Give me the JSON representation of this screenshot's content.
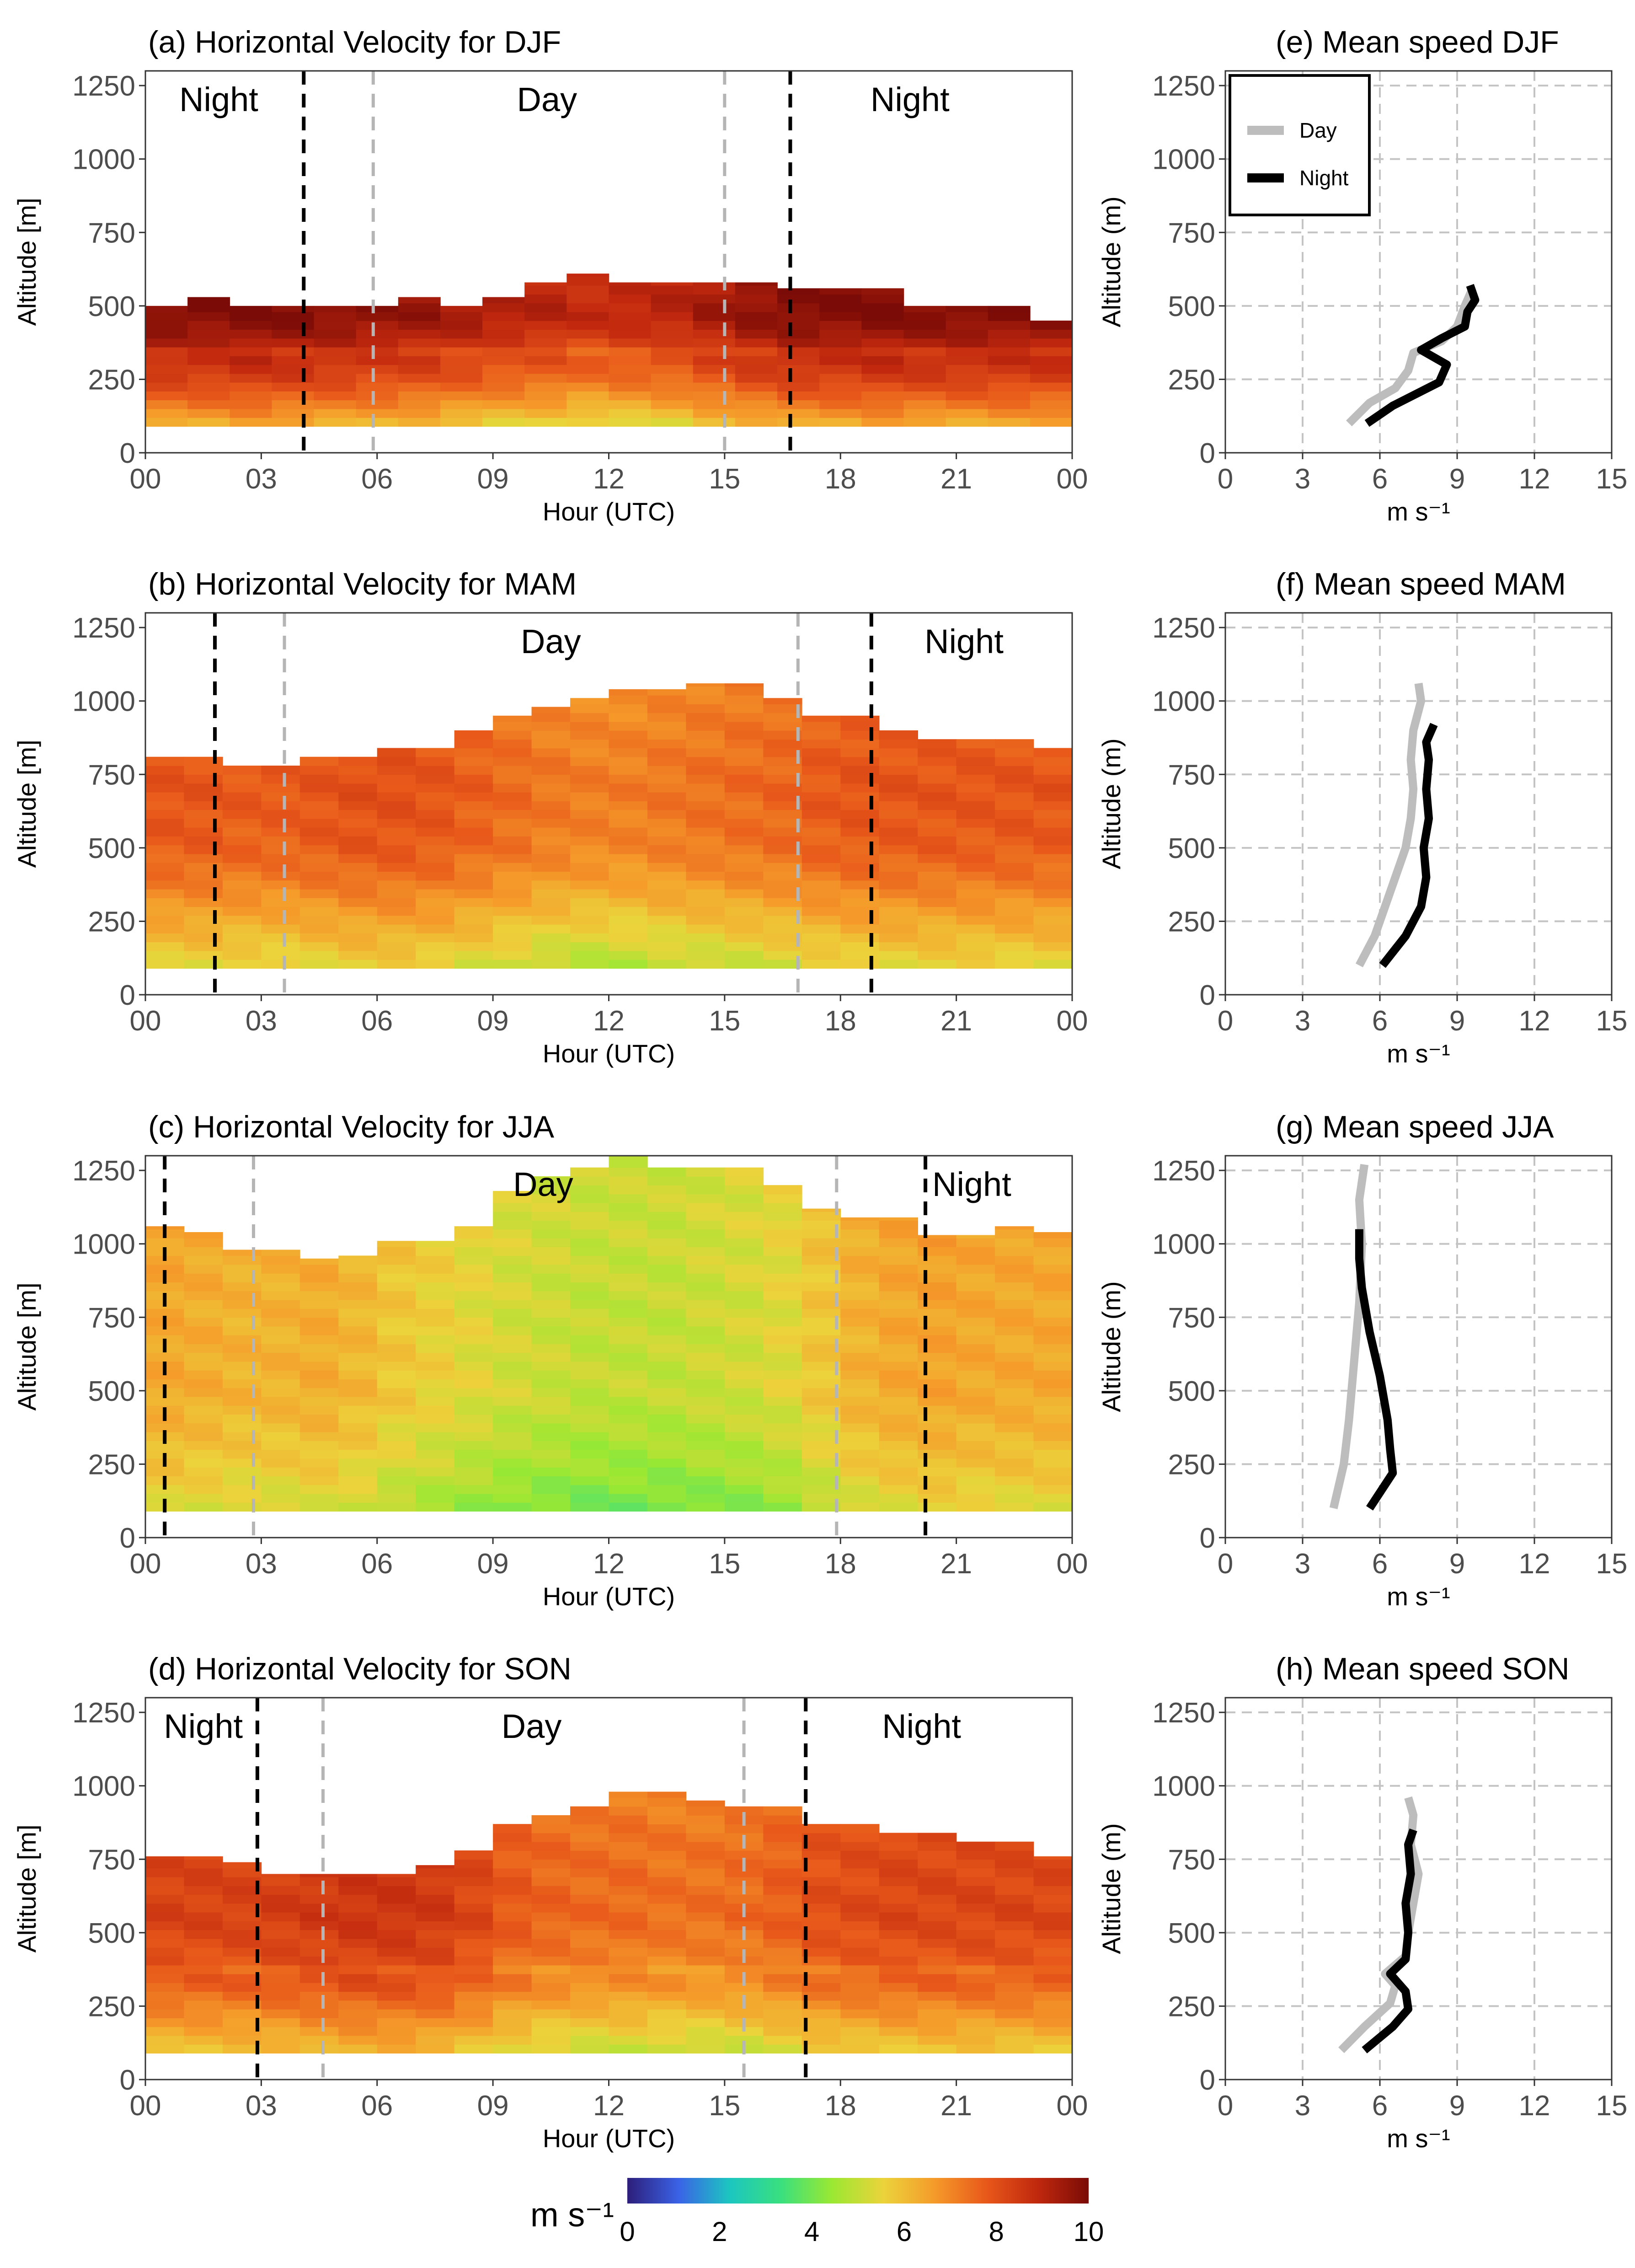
{
  "colors": {
    "day_line": "#bdbdbd",
    "night_line": "#000000",
    "grid": "#c4c4c4",
    "colormap": [
      "#2d1e7a",
      "#3a62e6",
      "#1cc6c0",
      "#39e07e",
      "#9be832",
      "#ecd33b",
      "#f59a2a",
      "#e8581a",
      "#c1280e",
      "#7a0b06"
    ]
  },
  "chart_data": [
    {
      "id": "a",
      "type": "heatmap",
      "title": "(a) Horizontal Velocity for DJF",
      "xlabel": "Hour (UTC)",
      "ylabel": "Altitude [m]",
      "xlim": [
        0,
        24
      ],
      "ylim": [
        0,
        1300
      ],
      "xticks": [
        "00",
        "03",
        "06",
        "09",
        "12",
        "15",
        "18",
        "21",
        "00"
      ],
      "yticks": [
        "0",
        "250",
        "500",
        "750",
        "1000",
        "1250"
      ],
      "bottom_altitude": 90,
      "top_altitude": [
        500,
        530,
        500,
        500,
        500,
        500,
        530,
        500,
        530,
        580,
        610,
        580,
        580,
        580,
        580,
        560,
        560,
        560,
        500,
        500,
        500,
        450
      ],
      "speed_profile": [
        [
          0,
          6.2
        ],
        [
          100,
          6.0
        ],
        [
          150,
          6.8
        ],
        [
          250,
          8.0
        ],
        [
          330,
          8.6
        ],
        [
          350,
          8.2
        ],
        [
          380,
          9.0
        ],
        [
          470,
          9.6
        ],
        [
          540,
          9.5
        ],
        [
          610,
          9.3
        ]
      ],
      "hour_adjust": [
        0.3,
        0.3,
        0.4,
        0.3,
        0.2,
        0.1,
        0.0,
        -0.2,
        -0.4,
        -0.5,
        -0.7,
        -0.6,
        -0.5,
        -0.2,
        0.1,
        0.3,
        0.3,
        0.4,
        0.3,
        0.3,
        0.3,
        0.3
      ],
      "night_lines": [
        4.1,
        16.7
      ],
      "day_lines": [
        5.9,
        15.0
      ],
      "labels": [
        {
          "text": "Night",
          "hour": 1.9
        },
        {
          "text": "Day",
          "hour": 10.4
        },
        {
          "text": "Night",
          "hour": 19.8
        }
      ]
    },
    {
      "id": "b",
      "type": "heatmap",
      "title": "(b) Horizontal Velocity for MAM",
      "xlabel": "Hour (UTC)",
      "ylabel": "Altitude [m]",
      "xlim": [
        0,
        24
      ],
      "ylim": [
        0,
        1300
      ],
      "xticks": [
        "00",
        "03",
        "06",
        "09",
        "12",
        "15",
        "18",
        "21",
        "00"
      ],
      "yticks": [
        "0",
        "250",
        "500",
        "750",
        "1000",
        "1250"
      ],
      "bottom_altitude": 90,
      "top_altitude": [
        810,
        810,
        780,
        780,
        810,
        810,
        840,
        840,
        900,
        950,
        980,
        1010,
        1040,
        1040,
        1060,
        1060,
        1010,
        950,
        950,
        900,
        870,
        870,
        870,
        840
      ],
      "speed_profile": [
        [
          0,
          5.5
        ],
        [
          100,
          5.4
        ],
        [
          200,
          6.0
        ],
        [
          300,
          6.6
        ],
        [
          400,
          7.2
        ],
        [
          500,
          7.6
        ],
        [
          700,
          7.8
        ],
        [
          900,
          7.6
        ],
        [
          1100,
          7.4
        ]
      ],
      "hour_adjust": [
        0.1,
        0.1,
        0.0,
        0.0,
        0.1,
        0.2,
        0.2,
        0.1,
        -0.1,
        -0.3,
        -0.5,
        -0.6,
        -0.6,
        -0.5,
        -0.4,
        -0.3,
        -0.2,
        0.0,
        0.1,
        0.1,
        0.1,
        0.1,
        0.1,
        0.1
      ],
      "night_lines": [
        1.8,
        18.8
      ],
      "day_lines": [
        3.6,
        16.9
      ],
      "labels": [
        {
          "text": "Day",
          "hour": 10.5
        },
        {
          "text": "Night",
          "hour": 21.2
        }
      ]
    },
    {
      "id": "c",
      "type": "heatmap",
      "title": "(c) Horizontal Velocity for JJA",
      "xlabel": "Hour (UTC)",
      "ylabel": "Altitude [m]",
      "xlim": [
        0,
        24
      ],
      "ylim": [
        0,
        1300
      ],
      "xticks": [
        "00",
        "03",
        "06",
        "09",
        "12",
        "15",
        "18",
        "21",
        "00"
      ],
      "yticks": [
        "0",
        "250",
        "500",
        "750",
        "1000",
        "1250"
      ],
      "bottom_altitude": 90,
      "top_altitude": [
        1060,
        1040,
        980,
        980,
        950,
        960,
        1010,
        1010,
        1060,
        1180,
        1230,
        1260,
        1300,
        1260,
        1260,
        1260,
        1200,
        1120,
        1090,
        1090,
        1030,
        1030,
        1060,
        1040
      ],
      "speed_profile": [
        [
          0,
          4.6
        ],
        [
          100,
          4.5
        ],
        [
          250,
          5.0
        ],
        [
          500,
          5.5
        ],
        [
          800,
          5.5
        ],
        [
          1100,
          5.6
        ],
        [
          1300,
          5.6
        ]
      ],
      "hour_adjust": [
        0.9,
        0.8,
        0.7,
        0.7,
        0.8,
        0.6,
        0.3,
        0.1,
        -0.1,
        -0.3,
        -0.4,
        -0.5,
        -0.5,
        -0.5,
        -0.4,
        -0.3,
        -0.1,
        0.3,
        0.7,
        0.9,
        1.0,
        0.9,
        0.9,
        0.9
      ],
      "night_lines": [
        0.5,
        20.2
      ],
      "day_lines": [
        2.8,
        17.9
      ],
      "labels": [
        {
          "text": "Day",
          "hour": 10.3
        },
        {
          "text": "Night",
          "hour": 21.4
        }
      ]
    },
    {
      "id": "d",
      "type": "heatmap",
      "title": "(d) Horizontal Velocity for SON",
      "xlabel": "Hour (UTC)",
      "ylabel": "Altitude [m]",
      "xlim": [
        0,
        24
      ],
      "ylim": [
        0,
        1300
      ],
      "xticks": [
        "00",
        "03",
        "06",
        "09",
        "12",
        "15",
        "18",
        "21",
        "00"
      ],
      "yticks": [
        "0",
        "250",
        "500",
        "750",
        "1000",
        "1250"
      ],
      "bottom_altitude": 90,
      "top_altitude": [
        760,
        760,
        740,
        700,
        700,
        700,
        700,
        730,
        780,
        870,
        900,
        930,
        980,
        980,
        950,
        930,
        930,
        870,
        870,
        840,
        840,
        810,
        810,
        760
      ],
      "speed_profile": [
        [
          0,
          5.6
        ],
        [
          100,
          5.6
        ],
        [
          200,
          6.4
        ],
        [
          300,
          7.2
        ],
        [
          340,
          7.6
        ],
        [
          360,
          7.0
        ],
        [
          400,
          7.6
        ],
        [
          550,
          8.0
        ],
        [
          800,
          7.9
        ],
        [
          1000,
          7.6
        ]
      ],
      "hour_adjust": [
        0.3,
        0.3,
        0.3,
        0.4,
        0.5,
        0.6,
        0.6,
        0.5,
        0.2,
        -0.2,
        -0.4,
        -0.5,
        -0.5,
        -0.6,
        -0.6,
        -0.5,
        -0.3,
        0.0,
        0.1,
        0.2,
        0.2,
        0.2,
        0.2,
        0.2
      ],
      "night_lines": [
        2.9,
        17.1
      ],
      "day_lines": [
        4.6,
        15.5
      ],
      "labels": [
        {
          "text": "Night",
          "hour": 1.5
        },
        {
          "text": "Day",
          "hour": 10.0
        },
        {
          "text": "Night",
          "hour": 20.1
        }
      ]
    },
    {
      "id": "e",
      "type": "line",
      "title": "(e) Mean speed DJF",
      "xlabel": "m s⁻¹",
      "ylabel": "Altitude (m)",
      "xlim": [
        0,
        15
      ],
      "ylim": [
        0,
        1300
      ],
      "xticks": [
        "0",
        "3",
        "6",
        "9",
        "12",
        "15"
      ],
      "yticks": [
        "0",
        "250",
        "500",
        "750",
        "1000",
        "1250"
      ],
      "legend": {
        "position": "top-left",
        "entries": [
          "Day",
          "Night"
        ]
      },
      "series": [
        {
          "name": "Day",
          "points": [
            [
              4.8,
              100
            ],
            [
              5.6,
              170
            ],
            [
              6.6,
              220
            ],
            [
              7.1,
              280
            ],
            [
              7.3,
              340
            ],
            [
              8.4,
              380
            ],
            [
              9.0,
              430
            ],
            [
              9.3,
              500
            ],
            [
              9.6,
              560
            ]
          ]
        },
        {
          "name": "Night",
          "points": [
            [
              5.5,
              100
            ],
            [
              6.5,
              160
            ],
            [
              8.3,
              240
            ],
            [
              8.6,
              300
            ],
            [
              7.6,
              350
            ],
            [
              8.4,
              390
            ],
            [
              9.3,
              430
            ],
            [
              9.4,
              480
            ],
            [
              9.7,
              520
            ],
            [
              9.5,
              570
            ]
          ]
        }
      ]
    },
    {
      "id": "f",
      "type": "line",
      "title": "(f) Mean speed MAM",
      "xlabel": "m s⁻¹",
      "ylabel": "Altitude (m)",
      "xlim": [
        0,
        15
      ],
      "ylim": [
        0,
        1300
      ],
      "xticks": [
        "0",
        "3",
        "6",
        "9",
        "12",
        "15"
      ],
      "yticks": [
        "0",
        "250",
        "500",
        "750",
        "1000",
        "1250"
      ],
      "legend": null,
      "series": [
        {
          "name": "Day",
          "points": [
            [
              5.2,
              100
            ],
            [
              5.8,
              200
            ],
            [
              6.2,
              300
            ],
            [
              6.6,
              400
            ],
            [
              7.0,
              500
            ],
            [
              7.2,
              600
            ],
            [
              7.3,
              700
            ],
            [
              7.2,
              800
            ],
            [
              7.3,
              900
            ],
            [
              7.6,
              1000
            ],
            [
              7.5,
              1060
            ]
          ]
        },
        {
          "name": "Night",
          "points": [
            [
              6.1,
              100
            ],
            [
              7.0,
              200
            ],
            [
              7.6,
              300
            ],
            [
              7.8,
              400
            ],
            [
              7.7,
              500
            ],
            [
              7.9,
              600
            ],
            [
              7.8,
              700
            ],
            [
              7.9,
              800
            ],
            [
              7.8,
              860
            ],
            [
              8.1,
              920
            ]
          ]
        }
      ]
    },
    {
      "id": "g",
      "type": "line",
      "title": "(g) Mean speed JJA",
      "xlabel": "m s⁻¹",
      "ylabel": "Altitude (m)",
      "xlim": [
        0,
        15
      ],
      "ylim": [
        0,
        1300
      ],
      "xticks": [
        "0",
        "3",
        "6",
        "9",
        "12",
        "15"
      ],
      "yticks": [
        "0",
        "250",
        "500",
        "750",
        "1000",
        "1250"
      ],
      "legend": null,
      "series": [
        {
          "name": "Day",
          "points": [
            [
              4.2,
              100
            ],
            [
              4.6,
              250
            ],
            [
              4.8,
              400
            ],
            [
              5.0,
              600
            ],
            [
              5.2,
              800
            ],
            [
              5.3,
              1000
            ],
            [
              5.2,
              1150
            ],
            [
              5.4,
              1270
            ]
          ]
        },
        {
          "name": "Night",
          "points": [
            [
              5.6,
              100
            ],
            [
              6.5,
              220
            ],
            [
              6.4,
              300
            ],
            [
              6.3,
              400
            ],
            [
              6.0,
              550
            ],
            [
              5.6,
              700
            ],
            [
              5.3,
              850
            ],
            [
              5.2,
              950
            ],
            [
              5.2,
              1050
            ]
          ]
        }
      ]
    },
    {
      "id": "h",
      "type": "line",
      "title": "(h) Mean speed SON",
      "xlabel": "m s⁻¹",
      "ylabel": "Altitude (m)",
      "xlim": [
        0,
        15
      ],
      "ylim": [
        0,
        1300
      ],
      "xticks": [
        "0",
        "3",
        "6",
        "9",
        "12",
        "15"
      ],
      "yticks": [
        "0",
        "250",
        "500",
        "750",
        "1000",
        "1250"
      ],
      "legend": null,
      "series": [
        {
          "name": "Day",
          "points": [
            [
              4.5,
              100
            ],
            [
              5.4,
              180
            ],
            [
              6.4,
              260
            ],
            [
              6.6,
              320
            ],
            [
              6.2,
              360
            ],
            [
              7.0,
              420
            ],
            [
              7.1,
              500
            ],
            [
              7.3,
              600
            ],
            [
              7.5,
              700
            ],
            [
              7.2,
              800
            ],
            [
              7.3,
              900
            ],
            [
              7.1,
              960
            ]
          ]
        },
        {
          "name": "Night",
          "points": [
            [
              5.4,
              100
            ],
            [
              6.5,
              180
            ],
            [
              7.1,
              240
            ],
            [
              7.0,
              300
            ],
            [
              6.4,
              360
            ],
            [
              7.0,
              410
            ],
            [
              7.1,
              500
            ],
            [
              7.0,
              600
            ],
            [
              7.2,
              700
            ],
            [
              7.1,
              800
            ],
            [
              7.3,
              850
            ]
          ]
        }
      ]
    }
  ],
  "colorbar": {
    "label": "m s⁻¹",
    "min": 0,
    "max": 10,
    "ticks": [
      "0",
      "2",
      "4",
      "6",
      "8",
      "10"
    ]
  }
}
